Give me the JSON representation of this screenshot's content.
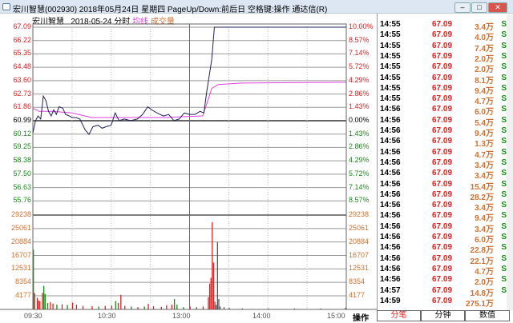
{
  "window": {
    "title": "宏川智慧(002930) 2018年05月24日 星期四 PageUp/Down:前后日 空格键:操作 通达信(R)",
    "minimize": "–",
    "maximize": "□",
    "close": "✕"
  },
  "subheader": {
    "name": "宏川智慧",
    "date": "2018-05-24",
    "mode": "分时",
    "avg_label": "均线",
    "vol_label": "成交量"
  },
  "colors": {
    "up": "#e02020",
    "down": "#1a8a1a",
    "price_line": "#20205a",
    "avg_line": "#e040e0",
    "vol_label": "#d07030",
    "grid": "#808080"
  },
  "price_axis": {
    "left": [
      "67.09",
      "66.22",
      "65.35",
      "64.48",
      "63.60",
      "62.73",
      "61.86",
      "60.99",
      "60.12",
      "59.25",
      "58.38",
      "57.50",
      "56.63",
      "55.76"
    ],
    "right": [
      "10.00%",
      "8.57%",
      "7.14%",
      "5.72%",
      "4.29%",
      "2.86%",
      "1.43%",
      "0.00%",
      "1.43%",
      "2.86%",
      "4.29%",
      "5.72%",
      "7.14%",
      "8.57%"
    ]
  },
  "volume_axis": [
    "29238",
    "25061",
    "20884",
    "16707",
    "12531",
    "8354",
    "4177"
  ],
  "time_axis": [
    "09:30",
    "10:30",
    "13:00",
    "14:00",
    "15:00"
  ],
  "operate_label": "操作",
  "chart_data": {
    "type": "line",
    "prev_close": 60.99,
    "ylim": [
      54.89,
      67.09
    ],
    "price": [
      [
        0,
        60.2
      ],
      [
        2,
        60.99
      ],
      [
        4,
        61.3
      ],
      [
        6,
        61.1
      ],
      [
        8,
        62.6
      ],
      [
        10,
        62.3
      ],
      [
        12,
        61.6
      ],
      [
        14,
        61.3
      ],
      [
        16,
        61.7
      ],
      [
        18,
        61.4
      ],
      [
        20,
        61.9
      ],
      [
        23,
        61.8
      ],
      [
        25,
        61.4
      ],
      [
        28,
        61.3
      ],
      [
        30,
        61.2
      ],
      [
        33,
        61.2
      ],
      [
        36,
        61.1
      ],
      [
        40,
        60.4
      ],
      [
        43,
        60.1
      ],
      [
        46,
        60.6
      ],
      [
        50,
        60.7
      ],
      [
        53,
        60.5
      ],
      [
        56,
        60.6
      ],
      [
        60,
        60.7
      ],
      [
        63,
        61.5
      ],
      [
        66,
        61.0
      ],
      [
        70,
        61.1
      ],
      [
        75,
        61.0
      ],
      [
        80,
        61.1
      ],
      [
        84,
        61.4
      ],
      [
        88,
        61.9
      ],
      [
        91,
        61.7
      ],
      [
        95,
        61.5
      ],
      [
        100,
        61.3
      ],
      [
        104,
        61.4
      ],
      [
        108,
        61.0
      ],
      [
        112,
        61.1
      ],
      [
        116,
        61.5
      ],
      [
        120,
        61.4
      ],
      [
        124,
        61.4
      ],
      [
        128,
        61.6
      ],
      [
        131,
        61.5
      ],
      [
        133,
        62.8
      ],
      [
        135,
        63.9
      ],
      [
        137,
        65.0
      ],
      [
        139,
        67.09
      ],
      [
        240,
        67.09
      ]
    ],
    "avg": [
      [
        0,
        61.8
      ],
      [
        5,
        61.6
      ],
      [
        15,
        61.6
      ],
      [
        30,
        61.5
      ],
      [
        45,
        61.2
      ],
      [
        100,
        61.2
      ],
      [
        130,
        61.3
      ],
      [
        134,
        62.3
      ],
      [
        137,
        63.1
      ],
      [
        142,
        63.35
      ],
      [
        160,
        63.45
      ],
      [
        240,
        63.5
      ]
    ],
    "volume": [
      [
        0,
        18500,
        "down"
      ],
      [
        1,
        5100,
        "up"
      ],
      [
        3,
        3600,
        "up"
      ],
      [
        4,
        2800,
        "up"
      ],
      [
        5,
        2600,
        "up"
      ],
      [
        7,
        5100,
        "up"
      ],
      [
        8,
        7300,
        "down"
      ],
      [
        9,
        4800,
        "down"
      ],
      [
        11,
        2000,
        "down"
      ],
      [
        13,
        2200,
        "up"
      ],
      [
        15,
        1800,
        "up"
      ],
      [
        18,
        1500,
        "down"
      ],
      [
        22,
        1600,
        "up"
      ],
      [
        26,
        1400,
        "down"
      ],
      [
        30,
        2100,
        "up"
      ],
      [
        33,
        1500,
        "up"
      ],
      [
        38,
        1100,
        "up"
      ],
      [
        45,
        1000,
        "up"
      ],
      [
        50,
        900,
        "down"
      ],
      [
        55,
        1100,
        "up"
      ],
      [
        60,
        1200,
        "up"
      ],
      [
        63,
        2600,
        "down"
      ],
      [
        65,
        2000,
        "up"
      ],
      [
        67,
        4500,
        "up"
      ],
      [
        70,
        1100,
        "up"
      ],
      [
        75,
        900,
        "down"
      ],
      [
        80,
        700,
        "up"
      ],
      [
        85,
        900,
        "down"
      ],
      [
        88,
        1700,
        "up"
      ],
      [
        92,
        1000,
        "up"
      ],
      [
        98,
        800,
        "up"
      ],
      [
        102,
        1300,
        "up"
      ],
      [
        106,
        1500,
        "up"
      ],
      [
        108,
        3200,
        "down"
      ],
      [
        110,
        1500,
        "down"
      ],
      [
        115,
        700,
        "down"
      ],
      [
        120,
        900,
        "up"
      ],
      [
        125,
        700,
        "down"
      ],
      [
        130,
        900,
        "up"
      ],
      [
        134,
        3800,
        "up"
      ],
      [
        135,
        8000,
        "up"
      ],
      [
        136,
        9800,
        "up"
      ],
      [
        137,
        27000,
        "up"
      ],
      [
        138,
        14500,
        "up"
      ],
      [
        139,
        2400,
        "flat"
      ],
      [
        140,
        1400,
        "flat"
      ],
      [
        141,
        20800,
        "flat"
      ],
      [
        142,
        3200,
        "flat"
      ],
      [
        143,
        900,
        "flat"
      ],
      [
        146,
        700,
        "flat"
      ],
      [
        150,
        500,
        "flat"
      ],
      [
        160,
        300,
        "flat"
      ],
      [
        180,
        300,
        "flat"
      ],
      [
        200,
        300,
        "flat"
      ],
      [
        220,
        300,
        "flat"
      ],
      [
        239,
        500,
        "flat"
      ]
    ]
  },
  "ticks": [
    {
      "time": "14:55",
      "price": "67.09",
      "vol": "3.4万",
      "side": "S"
    },
    {
      "time": "14:55",
      "price": "67.09",
      "vol": "4.0万",
      "side": "S"
    },
    {
      "time": "14:55",
      "price": "67.09",
      "vol": "7.4万",
      "side": "S"
    },
    {
      "time": "14:55",
      "price": "67.09",
      "vol": "2.0万",
      "side": "S"
    },
    {
      "time": "14:55",
      "price": "67.09",
      "vol": "2.0万",
      "side": "S"
    },
    {
      "time": "14:55",
      "price": "67.09",
      "vol": "8.1万",
      "side": "S"
    },
    {
      "time": "14:55",
      "price": "67.09",
      "vol": "9.4万",
      "side": "S"
    },
    {
      "time": "14:55",
      "price": "67.09",
      "vol": "4.7万",
      "side": "S"
    },
    {
      "time": "14:56",
      "price": "67.09",
      "vol": "6.0万",
      "side": "S"
    },
    {
      "time": "14:56",
      "price": "67.09",
      "vol": "5.4万",
      "side": "S"
    },
    {
      "time": "14:56",
      "price": "67.09",
      "vol": "9.4万",
      "side": "S"
    },
    {
      "time": "14:56",
      "price": "67.09",
      "vol": "1.3万",
      "side": "S"
    },
    {
      "time": "14:56",
      "price": "67.09",
      "vol": "4.7万",
      "side": "S"
    },
    {
      "time": "14:56",
      "price": "67.09",
      "vol": "3.4万",
      "side": "S"
    },
    {
      "time": "14:56",
      "price": "67.09",
      "vol": "3.4万",
      "side": "S"
    },
    {
      "time": "14:56",
      "price": "67.09",
      "vol": "15.4万",
      "side": "S"
    },
    {
      "time": "14:56",
      "price": "67.09",
      "vol": "28.2万",
      "side": "S"
    },
    {
      "time": "14:56",
      "price": "67.09",
      "vol": "3.4万",
      "side": "S"
    },
    {
      "time": "14:56",
      "price": "67.09",
      "vol": "9.4万",
      "side": "S"
    },
    {
      "time": "14:56",
      "price": "67.09",
      "vol": "3.4万",
      "side": "S"
    },
    {
      "time": "14:56",
      "price": "67.09",
      "vol": "6.0万",
      "side": "S"
    },
    {
      "time": "14:56",
      "price": "67.09",
      "vol": "22.8万",
      "side": "S"
    },
    {
      "time": "14:56",
      "price": "67.09",
      "vol": "22.1万",
      "side": "S"
    },
    {
      "time": "14:56",
      "price": "67.09",
      "vol": "4.7万",
      "side": "S"
    },
    {
      "time": "14:56",
      "price": "67.09",
      "vol": "2.0万",
      "side": "S"
    },
    {
      "time": "14:57",
      "price": "67.09",
      "vol": "14.8万",
      "side": "S"
    },
    {
      "time": "14:59",
      "price": "67.09",
      "vol": "275.1万",
      "side": ""
    }
  ],
  "tabs": [
    "分笔",
    "分钟",
    "数值"
  ]
}
